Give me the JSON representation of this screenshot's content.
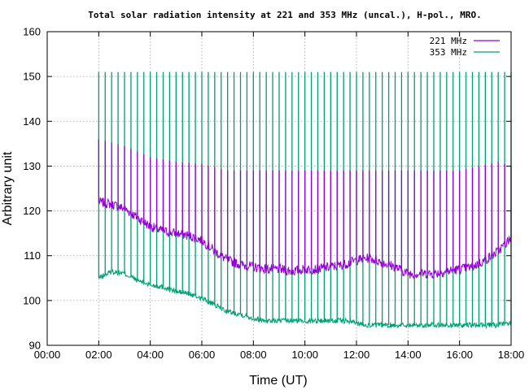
{
  "chart_data": {
    "type": "line",
    "title": "Total solar radiation intensity at 221 and 353 MHz (uncal.), H-pol., MRO.",
    "xlabel": "Time (UT)",
    "ylabel": "Arbitrary unit",
    "xlim": [
      "00:00",
      "18:00"
    ],
    "ylim": [
      90,
      160
    ],
    "x_ticks": [
      "00:00",
      "02:00",
      "04:00",
      "06:00",
      "08:00",
      "10:00",
      "12:00",
      "14:00",
      "16:00",
      "18:00"
    ],
    "y_ticks": [
      90,
      100,
      110,
      120,
      130,
      140,
      150,
      160
    ],
    "grid": true,
    "legend_position": "top-right",
    "calibration_spike_interval_minutes": 15,
    "series": [
      {
        "name": "221 MHz",
        "color": "#9400d3",
        "baseline": [
          [
            "02:00",
            122
          ],
          [
            "02:30",
            121.5
          ],
          [
            "03:00",
            120.5
          ],
          [
            "03:30",
            118.5
          ],
          [
            "04:00",
            116.5
          ],
          [
            "04:30",
            115.5
          ],
          [
            "05:00",
            115
          ],
          [
            "05:30",
            114.5
          ],
          [
            "06:00",
            113.5
          ],
          [
            "06:30",
            111
          ],
          [
            "07:00",
            109
          ],
          [
            "07:30",
            108
          ],
          [
            "08:00",
            107.5
          ],
          [
            "08:30",
            107
          ],
          [
            "09:00",
            107
          ],
          [
            "09:30",
            106.5
          ],
          [
            "10:00",
            107
          ],
          [
            "10:30",
            107
          ],
          [
            "11:00",
            107.5
          ],
          [
            "11:30",
            108
          ],
          [
            "12:00",
            109
          ],
          [
            "12:30",
            109.5
          ],
          [
            "13:00",
            108.5
          ],
          [
            "13:30",
            107.5
          ],
          [
            "14:00",
            106
          ],
          [
            "14:30",
            106
          ],
          [
            "15:00",
            106
          ],
          [
            "15:30",
            106.5
          ],
          [
            "16:00",
            107
          ],
          [
            "16:30",
            107.5
          ],
          [
            "17:00",
            109
          ],
          [
            "17:30",
            111
          ],
          [
            "18:00",
            114
          ]
        ],
        "spike_peaks": [
          [
            "02:00",
            136
          ],
          [
            "03:00",
            134.5
          ],
          [
            "04:00",
            132
          ],
          [
            "05:00",
            131
          ],
          [
            "06:00",
            130.5
          ],
          [
            "07:00",
            129
          ],
          [
            "08:00",
            129
          ],
          [
            "10:00",
            129
          ],
          [
            "12:00",
            129
          ],
          [
            "14:00",
            129
          ],
          [
            "16:00",
            129
          ],
          [
            "17:30",
            131
          ],
          [
            "18:00",
            130
          ]
        ]
      },
      {
        "name": "353 MHz",
        "color": "#009e73",
        "baseline": [
          [
            "02:00",
            105
          ],
          [
            "02:30",
            106.5
          ],
          [
            "03:00",
            106
          ],
          [
            "03:30",
            104.5
          ],
          [
            "04:00",
            103.5
          ],
          [
            "04:30",
            103
          ],
          [
            "05:00",
            102
          ],
          [
            "05:30",
            101.5
          ],
          [
            "06:00",
            100.5
          ],
          [
            "06:30",
            99
          ],
          [
            "07:00",
            97.5
          ],
          [
            "07:30",
            97
          ],
          [
            "08:00",
            96
          ],
          [
            "08:30",
            95.5
          ],
          [
            "09:00",
            95.5
          ],
          [
            "09:30",
            95.5
          ],
          [
            "10:00",
            95.5
          ],
          [
            "10:30",
            95.5
          ],
          [
            "11:00",
            95.5
          ],
          [
            "11:30",
            95.5
          ],
          [
            "12:00",
            95
          ],
          [
            "12:30",
            94.5
          ],
          [
            "13:00",
            94.5
          ],
          [
            "13:30",
            94.5
          ],
          [
            "14:00",
            94.5
          ],
          [
            "14:30",
            94.5
          ],
          [
            "15:00",
            94.5
          ],
          [
            "15:30",
            94.5
          ],
          [
            "16:00",
            94.5
          ],
          [
            "16:30",
            94.5
          ],
          [
            "17:00",
            94.5
          ],
          [
            "17:30",
            94.5
          ],
          [
            "18:00",
            95
          ]
        ],
        "spike_peaks": [
          [
            "02:00",
            151
          ],
          [
            "04:00",
            151
          ],
          [
            "06:00",
            151
          ],
          [
            "08:00",
            151
          ],
          [
            "10:00",
            151
          ],
          [
            "12:00",
            151
          ],
          [
            "14:00",
            151
          ],
          [
            "16:00",
            151
          ],
          [
            "18:00",
            151
          ]
        ]
      }
    ]
  }
}
